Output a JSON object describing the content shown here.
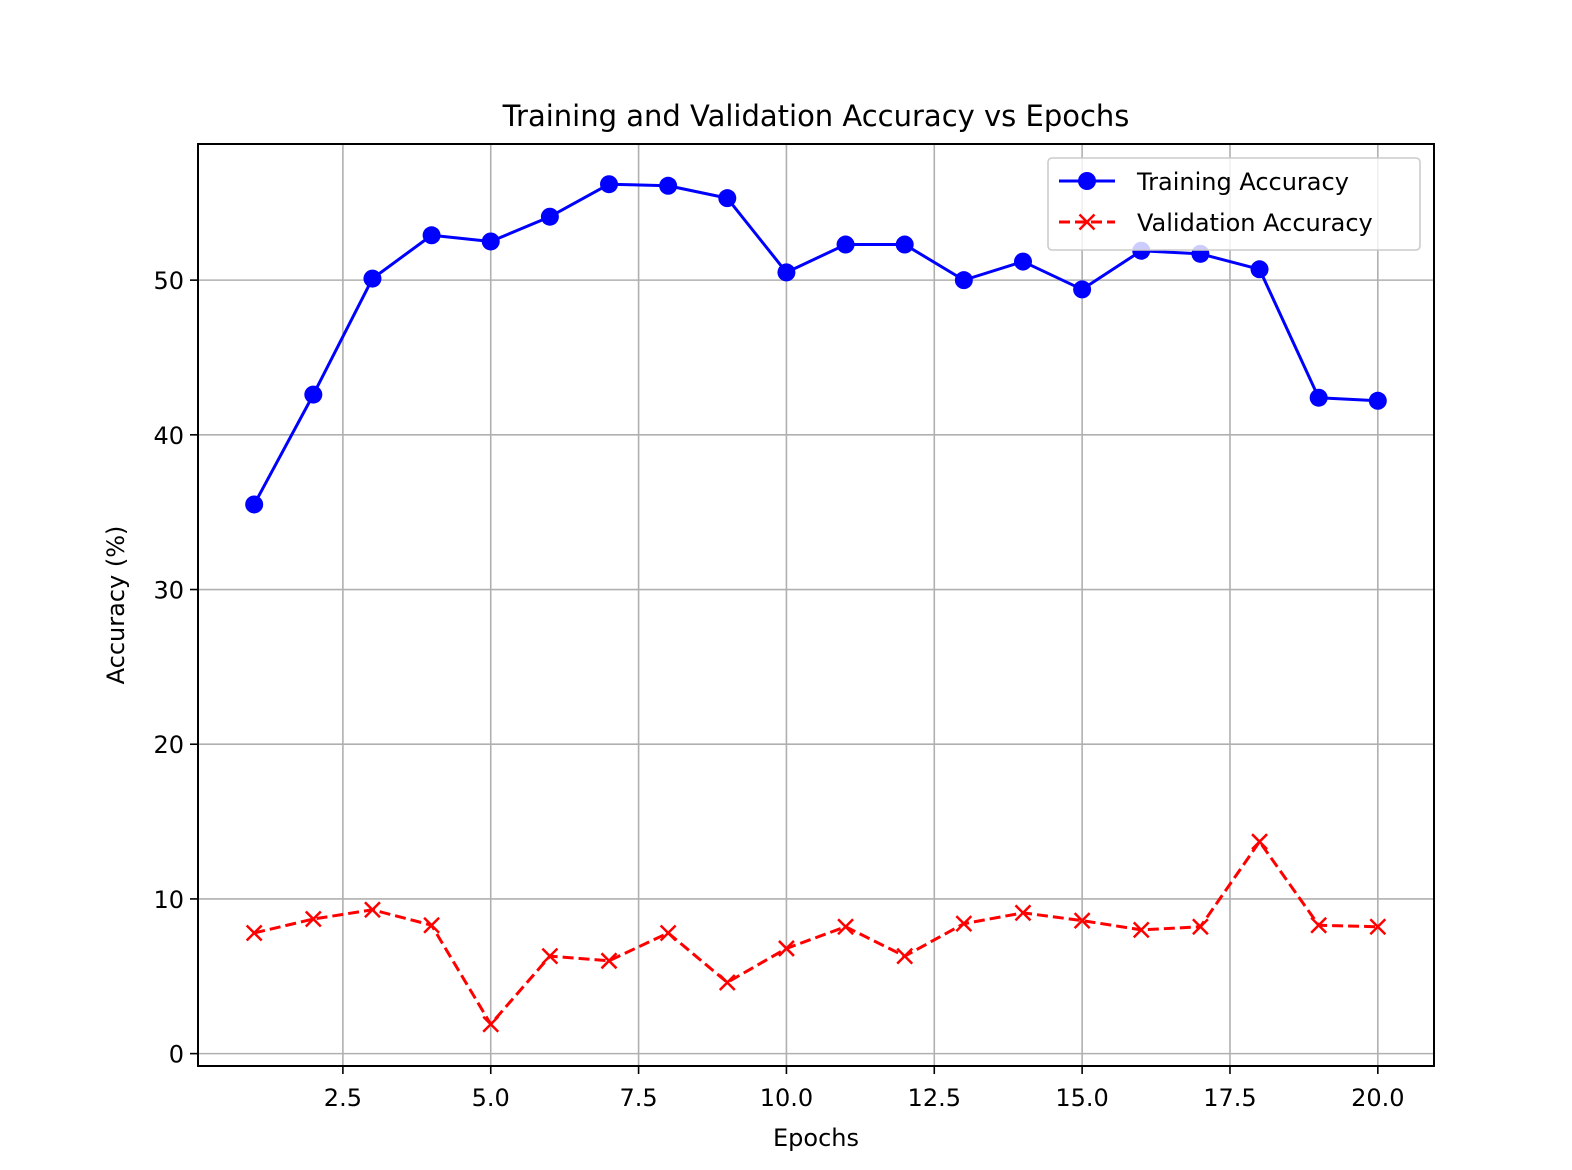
{
  "chart_data": {
    "type": "line",
    "title": "Training and Validation Accuracy vs Epochs",
    "xlabel": "Epochs",
    "ylabel": "Accuracy (%)",
    "xlim": [
      0.05,
      20.95
    ],
    "ylim": [
      -0.8,
      58.8
    ],
    "x_ticks": [
      2.5,
      5.0,
      7.5,
      10.0,
      12.5,
      15.0,
      17.5,
      20.0
    ],
    "x_tick_labels": [
      "2.5",
      "5.0",
      "7.5",
      "10.0",
      "12.5",
      "15.0",
      "17.5",
      "20.0"
    ],
    "y_ticks": [
      0,
      10,
      20,
      30,
      40,
      50
    ],
    "y_tick_labels": [
      "0",
      "10",
      "20",
      "30",
      "40",
      "50"
    ],
    "grid": true,
    "legend_position": "top-right",
    "x": [
      1,
      2,
      3,
      4,
      5,
      6,
      7,
      8,
      9,
      10,
      11,
      12,
      13,
      14,
      15,
      16,
      17,
      18,
      19,
      20
    ],
    "series": [
      {
        "name": "Training Accuracy",
        "color": "#0000ff",
        "line_style": "solid",
        "marker": "circle",
        "values": [
          35.5,
          42.6,
          50.1,
          52.9,
          52.5,
          54.1,
          56.2,
          56.1,
          55.3,
          50.5,
          52.3,
          52.3,
          50.0,
          51.2,
          49.4,
          51.9,
          51.7,
          50.7,
          42.4,
          42.2
        ]
      },
      {
        "name": "Validation Accuracy",
        "color": "#ff0000",
        "line_style": "dashed",
        "marker": "x",
        "values": [
          7.8,
          8.7,
          9.3,
          8.3,
          1.9,
          6.3,
          6.0,
          7.8,
          4.6,
          6.8,
          8.2,
          6.3,
          8.4,
          9.1,
          8.6,
          8.0,
          8.2,
          13.7,
          8.3,
          8.2
        ]
      }
    ]
  }
}
